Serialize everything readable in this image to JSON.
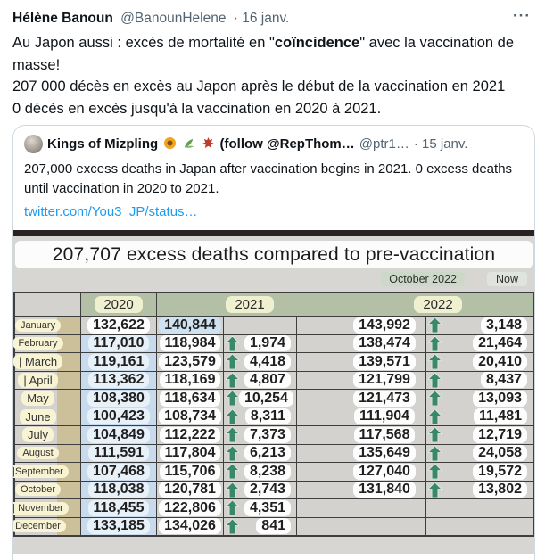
{
  "tweet": {
    "author": "Hélène Banoun",
    "handle": "@BanounHelene",
    "date": "· 16 janv.",
    "text_before_bold": "Au Japon aussi : excès de mortalité en \"",
    "text_bold": "coïncidence",
    "text_after_bold": "\" avec la vaccination de masse!",
    "text_line2": "207 000 décès en excès au Japon après le début de la vaccination en 2021",
    "text_line3": "0 décès en excès jusqu'à la vaccination en 2020 à 2021."
  },
  "icons": {
    "more_glyph": "···",
    "quote_name_emojis": [
      "sunflower",
      "herb",
      "maple-leaf"
    ],
    "diff_arrow": "up-arrow",
    "arrow_color": "#3a886c"
  },
  "quote": {
    "author": "Kings of Mizpling",
    "author_suffix": "(follow @RepThom…",
    "handle": "@ptr1…",
    "date": "· 15 janv.",
    "text": "207,000 excess deaths in Japan after vaccination begins in 2021. 0 excess deaths until vaccination in 2020 to 2021.",
    "link": "twitter.com/You3_JP/status…"
  },
  "image": {
    "title": "207,707 excess deaths compared to pre-vaccination",
    "timeline_label": "October 2022",
    "now_label": "Now",
    "col_2020": "2020",
    "col_2021": "2021",
    "col_2022": "2022",
    "rows": [
      {
        "month": "January",
        "v2020": "132,622",
        "v2021": "140,844",
        "d2021": "",
        "v2022": "143,992",
        "d2022": "3,148"
      },
      {
        "month": "February",
        "v2020": "117,010",
        "v2021": "118,984",
        "d2021": "1,974",
        "v2022": "138,474",
        "d2022": "21,464"
      },
      {
        "month": "| March",
        "v2020": "119,161",
        "v2021": "123,579",
        "d2021": "4,418",
        "v2022": "139,571",
        "d2022": "20,410"
      },
      {
        "month": "| April",
        "v2020": "113,362",
        "v2021": "118,169",
        "d2021": "4,807",
        "v2022": "121,799",
        "d2022": "8,437"
      },
      {
        "month": "May",
        "v2020": "108,380",
        "v2021": "118,634",
        "d2021": "10,254",
        "v2022": "121,473",
        "d2022": "13,093"
      },
      {
        "month": "June",
        "v2020": "100,423",
        "v2021": "108,734",
        "d2021": "8,311",
        "v2022": "111,904",
        "d2022": "11,481"
      },
      {
        "month": "July",
        "v2020": "104,849",
        "v2021": "112,222",
        "d2021": "7,373",
        "v2022": "117,568",
        "d2022": "12,719"
      },
      {
        "month": "August",
        "v2020": "111,591",
        "v2021": "117,804",
        "d2021": "6,213",
        "v2022": "135,649",
        "d2022": "24,058"
      },
      {
        "month": "|September",
        "v2020": "107,468",
        "v2021": "115,706",
        "d2021": "8,238",
        "v2022": "127,040",
        "d2022": "19,572"
      },
      {
        "month": "October",
        "v2020": "118,038",
        "v2021": "120,781",
        "d2021": "2,743",
        "v2022": "131,840",
        "d2022": "13,802"
      },
      {
        "month": "| November",
        "v2020": "118,455",
        "v2021": "122,806",
        "d2021": "4,351",
        "v2022": "",
        "d2022": ""
      },
      {
        "month": "December",
        "v2020": "133,185",
        "v2021": "134,026",
        "d2021": "841",
        "v2022": "",
        "d2022": ""
      }
    ]
  },
  "colors": {
    "link_blue": "#1d9bf0",
    "text_gray": "#536471",
    "arrow_green": "#3a886c",
    "header_sage": "#b3c0a6",
    "cell_blue": "#c8daeb",
    "month_cream": "#f8f3d3",
    "tan_strip": "#ccc09a",
    "image_bg": "#d7d6d3"
  }
}
